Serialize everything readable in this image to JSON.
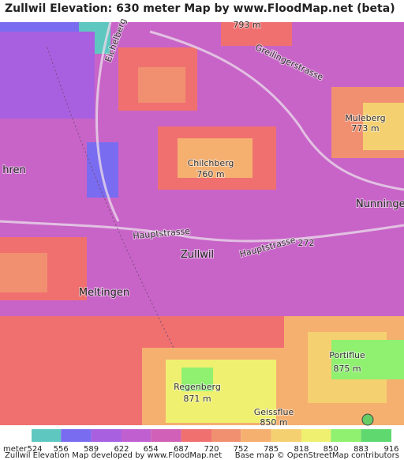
{
  "header": {
    "title": "Zullwil Elevation: 630 meter Map by www.FloodMap.net (beta)"
  },
  "map": {
    "labels": [
      "793 m",
      "Greilingerstrasse",
      "Eichelberg",
      "Muleberg",
      "773 m",
      "Chilchberg",
      "760 m",
      "hren",
      "Nunninger",
      "Hauptstrasse",
      "272",
      "Zullwil",
      "Hauptstrasse",
      "Meltingen",
      "Portiflue",
      "875 m",
      "Regenberg",
      "871 m",
      "Geissflue",
      "850 m"
    ]
  },
  "legend": {
    "label": "meter",
    "ticks": [
      524,
      556,
      589,
      622,
      654,
      687,
      720,
      752,
      785,
      818,
      850,
      883,
      916
    ],
    "colors": [
      "#5ec8c0",
      "#7a6cf0",
      "#a860e0",
      "#c060d0",
      "#d060b8",
      "#f07070",
      "#f09070",
      "#f5b070",
      "#f5d070",
      "#f0f070",
      "#90f070",
      "#60d870"
    ]
  },
  "footer": {
    "left": "Zullwil Elevation Map developed by www.FloodMap.net",
    "right": "Base map © OpenStreetMap contributors"
  }
}
